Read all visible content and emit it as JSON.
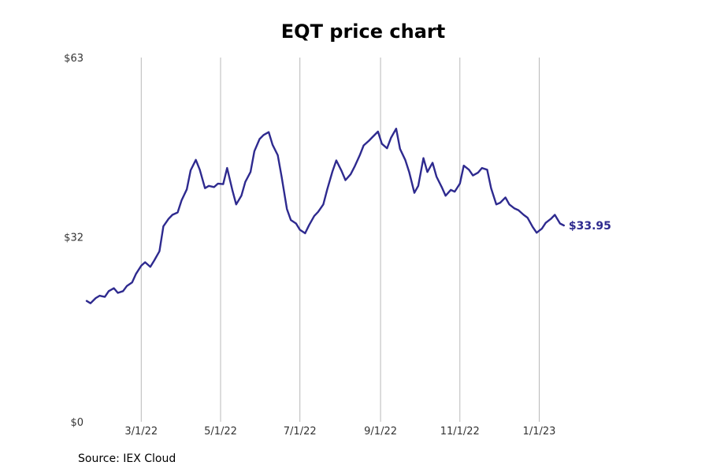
{
  "chart_data": {
    "type": "line",
    "title": "EQT price chart",
    "source": "Source: IEX Cloud",
    "y_ticks": [
      "$0",
      "$32",
      "$63"
    ],
    "y_tick_values": [
      0,
      32,
      63
    ],
    "ylim": [
      0,
      63
    ],
    "x_ticks": [
      "3/1/22",
      "5/1/22",
      "7/1/22",
      "9/1/22",
      "11/1/22",
      "1/1/23"
    ],
    "x_tick_dates": [
      "2022-03-01",
      "2022-05-01",
      "2022-07-01",
      "2022-09-01",
      "2022-11-01",
      "2023-01-01"
    ],
    "xlim": [
      "2022-01-15",
      "2023-03-15"
    ],
    "grid": "vertical",
    "line_color": "#2e2a8f",
    "last_value_label": "$33.95",
    "series": [
      {
        "x": [
          "2022-01-18",
          "2022-01-21",
          "2022-01-25",
          "2022-01-28",
          "2022-02-01",
          "2022-02-04",
          "2022-02-08",
          "2022-02-11",
          "2022-02-15",
          "2022-02-18",
          "2022-02-22",
          "2022-02-25",
          "2022-03-01",
          "2022-03-04",
          "2022-03-08",
          "2022-03-11",
          "2022-03-15",
          "2022-03-18",
          "2022-03-22",
          "2022-03-25",
          "2022-03-29",
          "2022-04-01",
          "2022-04-05",
          "2022-04-08",
          "2022-04-12",
          "2022-04-15",
          "2022-04-19",
          "2022-04-22",
          "2022-04-26",
          "2022-04-29",
          "2022-05-03",
          "2022-05-06",
          "2022-05-10",
          "2022-05-13",
          "2022-05-17",
          "2022-05-20",
          "2022-05-24",
          "2022-05-27",
          "2022-05-31",
          "2022-06-03",
          "2022-06-07",
          "2022-06-10",
          "2022-06-14",
          "2022-06-17",
          "2022-06-21",
          "2022-06-24",
          "2022-06-28",
          "2022-07-01",
          "2022-07-05",
          "2022-07-08",
          "2022-07-12",
          "2022-07-15",
          "2022-07-19",
          "2022-07-22",
          "2022-07-26",
          "2022-07-29",
          "2022-08-02",
          "2022-08-05",
          "2022-08-09",
          "2022-08-12",
          "2022-08-16",
          "2022-08-19",
          "2022-08-23",
          "2022-08-26",
          "2022-08-30",
          "2022-09-02",
          "2022-09-06",
          "2022-09-09",
          "2022-09-13",
          "2022-09-16",
          "2022-09-20",
          "2022-09-23",
          "2022-09-27",
          "2022-09-30",
          "2022-10-04",
          "2022-10-07",
          "2022-10-11",
          "2022-10-14",
          "2022-10-18",
          "2022-10-21",
          "2022-10-25",
          "2022-10-28",
          "2022-11-01",
          "2022-11-04",
          "2022-11-08",
          "2022-11-11",
          "2022-11-15",
          "2022-11-18",
          "2022-11-22",
          "2022-11-25",
          "2022-11-29",
          "2022-12-02",
          "2022-12-06",
          "2022-12-09",
          "2022-12-13",
          "2022-12-16",
          "2022-12-20",
          "2022-12-23",
          "2022-12-27",
          "2022-12-30",
          "2023-01-03",
          "2023-01-06",
          "2023-01-10",
          "2023-01-13",
          "2023-01-17",
          "2023-01-20"
        ],
        "values": [
          20.9,
          20.5,
          21.4,
          21.8,
          21.6,
          22.6,
          23.1,
          22.3,
          22.6,
          23.5,
          24.1,
          25.6,
          27.0,
          27.6,
          26.8,
          27.9,
          29.5,
          33.8,
          35.1,
          35.8,
          36.2,
          38.3,
          40.2,
          43.5,
          45.3,
          43.6,
          40.4,
          40.8,
          40.6,
          41.2,
          41.1,
          43.9,
          40.1,
          37.6,
          39.1,
          41.5,
          43.2,
          46.8,
          48.9,
          49.6,
          50.1,
          47.9,
          46.1,
          42.3,
          36.8,
          34.9,
          34.3,
          33.2,
          32.6,
          34.0,
          35.6,
          36.3,
          37.6,
          40.2,
          43.3,
          45.2,
          43.4,
          41.8,
          42.8,
          44.1,
          46.1,
          47.8,
          48.6,
          49.3,
          50.2,
          48.1,
          47.3,
          49.1,
          50.7,
          47.2,
          45.3,
          43.2,
          39.6,
          40.8,
          45.6,
          43.2,
          44.8,
          42.4,
          40.6,
          39.1,
          40.1,
          39.8,
          41.2,
          44.3,
          43.6,
          42.6,
          43.1,
          43.9,
          43.6,
          40.4,
          37.6,
          37.9,
          38.8,
          37.6,
          36.9,
          36.6,
          35.8,
          35.3,
          33.7,
          32.7,
          33.4,
          34.4,
          35.1,
          35.8,
          34.3,
          33.95
        ]
      }
    ]
  }
}
